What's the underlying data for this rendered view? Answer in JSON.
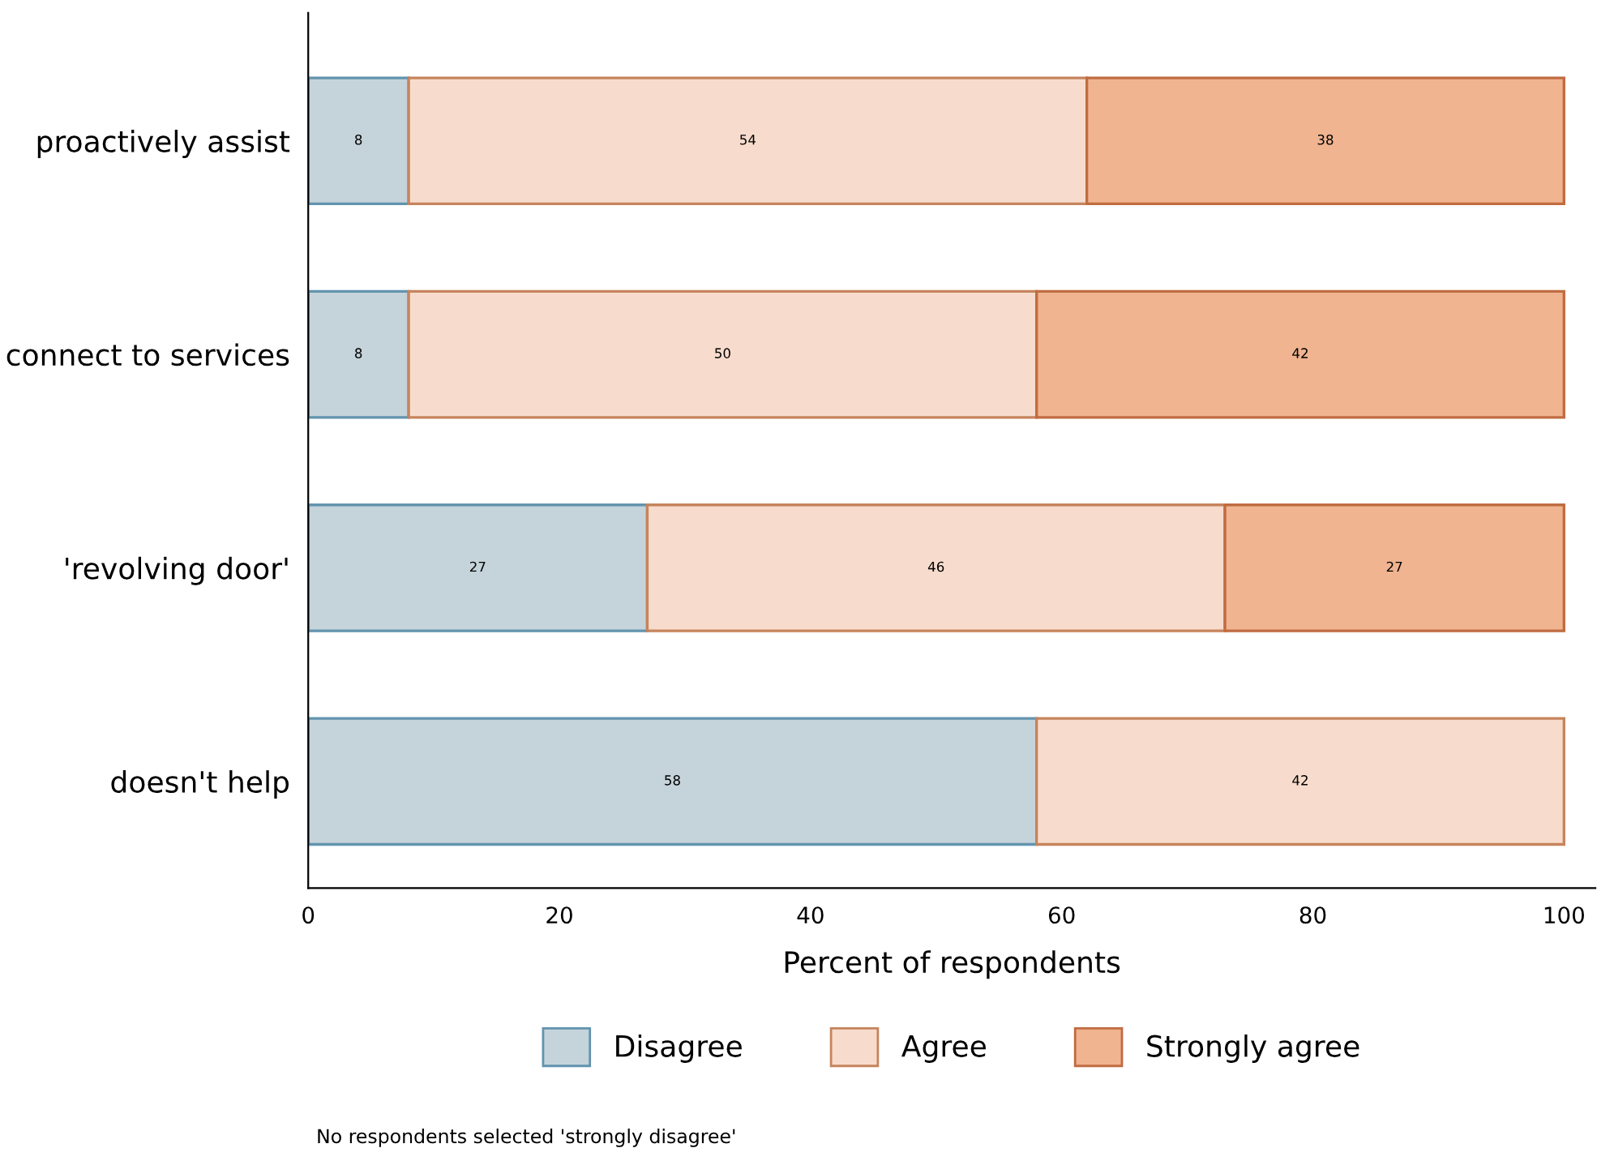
{
  "chart_data": {
    "type": "bar",
    "orientation": "horizontal",
    "stacked": true,
    "categories": [
      "proactively assist",
      "connect to services",
      "'revolving door'",
      "doesn't help"
    ],
    "series": [
      {
        "name": "Disagree",
        "color": "#c5d3da",
        "values": [
          8,
          8,
          27,
          58
        ]
      },
      {
        "name": "Agree",
        "color": "#f7dccd",
        "values": [
          54,
          50,
          46,
          42
        ]
      },
      {
        "name": "Strongly agree",
        "color": "#f0b490",
        "values": [
          38,
          42,
          27,
          null
        ]
      }
    ],
    "xlim": [
      0,
      102.5
    ],
    "xticks": [
      0,
      20,
      40,
      60,
      80,
      100
    ],
    "xlabel": "Percent of respondents",
    "data_labels": true,
    "legend": "bottom",
    "grid": false,
    "annotations": [
      "No respondents selected 'strongly disagree'"
    ]
  }
}
